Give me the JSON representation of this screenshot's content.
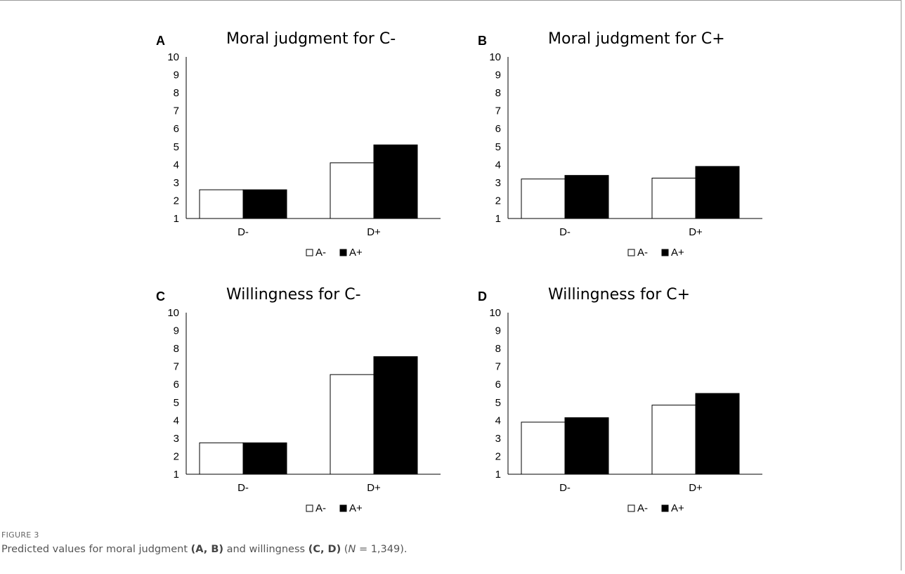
{
  "figure": {
    "label": "FIGURE 3",
    "caption_pre": "Predicted values for moral judgment ",
    "caption_b1": "(A, B)",
    "caption_mid": " and willingness ",
    "caption_b2": "(C, D)",
    "caption_n_open": " (",
    "caption_n_italic": "N",
    "caption_n_rest": " = 1,349)."
  },
  "legend": {
    "a_minus": "A-",
    "a_plus": "A+",
    "a_minus_color": "#ffffff",
    "a_plus_color": "#000000"
  },
  "chart_data": [
    {
      "panel": "A",
      "type": "bar",
      "title": "Moral judgment for C-",
      "categories": [
        "D-",
        "D+"
      ],
      "series": [
        {
          "name": "A-",
          "values": [
            2.6,
            4.1
          ]
        },
        {
          "name": "A+",
          "values": [
            2.6,
            5.1
          ]
        }
      ],
      "ylim": [
        1,
        10
      ],
      "yticks": [
        "1",
        "2",
        "3",
        "4",
        "5",
        "6",
        "7",
        "8",
        "9",
        "10"
      ],
      "legend": "bottom"
    },
    {
      "panel": "B",
      "type": "bar",
      "title": "Moral judgment for C+",
      "categories": [
        "D-",
        "D+"
      ],
      "series": [
        {
          "name": "A-",
          "values": [
            3.2,
            3.25
          ]
        },
        {
          "name": "A+",
          "values": [
            3.4,
            3.9
          ]
        }
      ],
      "ylim": [
        1,
        10
      ],
      "yticks": [
        "1",
        "2",
        "3",
        "4",
        "5",
        "6",
        "7",
        "8",
        "9",
        "10"
      ],
      "legend": "bottom"
    },
    {
      "panel": "C",
      "type": "bar",
      "title": "Willingness for C-",
      "categories": [
        "D-",
        "D+"
      ],
      "series": [
        {
          "name": "A-",
          "values": [
            2.75,
            6.55
          ]
        },
        {
          "name": "A+",
          "values": [
            2.75,
            7.55
          ]
        }
      ],
      "ylim": [
        1,
        10
      ],
      "yticks": [
        "1",
        "2",
        "3",
        "4",
        "5",
        "6",
        "7",
        "8",
        "9",
        "10"
      ],
      "legend": "bottom"
    },
    {
      "panel": "D",
      "type": "bar",
      "title": "Willingness for C+",
      "categories": [
        "D-",
        "D+"
      ],
      "series": [
        {
          "name": "A-",
          "values": [
            3.9,
            4.85
          ]
        },
        {
          "name": "A+",
          "values": [
            4.15,
            5.5
          ]
        }
      ],
      "ylim": [
        1,
        10
      ],
      "yticks": [
        "1",
        "2",
        "3",
        "4",
        "5",
        "6",
        "7",
        "8",
        "9",
        "10"
      ],
      "legend": "bottom"
    }
  ]
}
